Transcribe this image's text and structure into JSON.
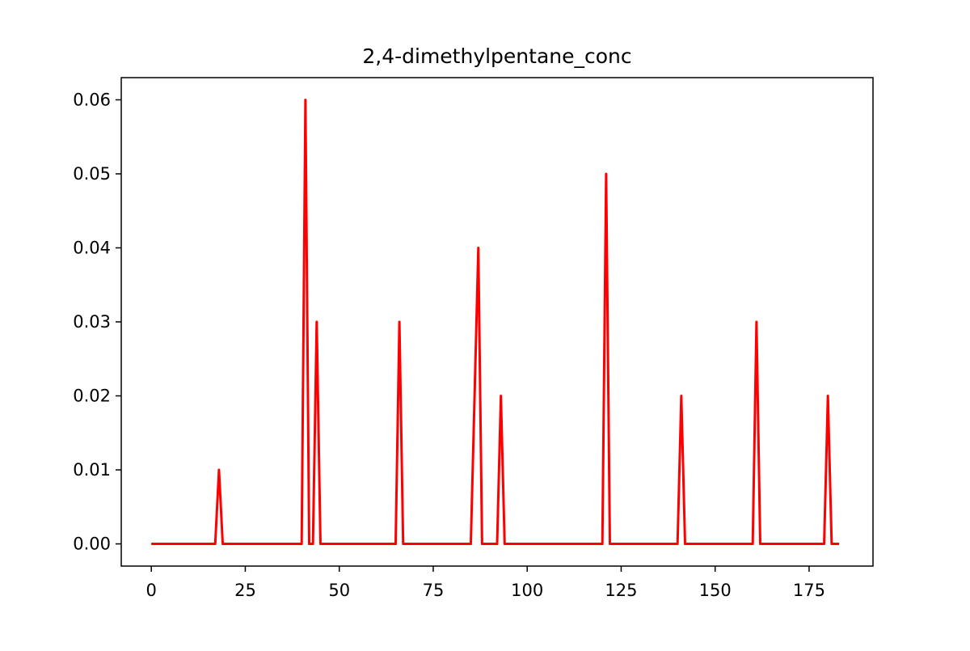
{
  "chart_data": {
    "type": "line",
    "title": "2,4-dimethylpentane_conc",
    "xlabel": "",
    "ylabel": "",
    "xlim": [
      -8,
      192
    ],
    "ylim": [
      -0.003,
      0.063
    ],
    "x_ticks": [
      0,
      25,
      50,
      75,
      100,
      125,
      150,
      175
    ],
    "x_tick_labels": [
      "0",
      "25",
      "50",
      "75",
      "100",
      "125",
      "150",
      "175"
    ],
    "y_ticks": [
      0.0,
      0.01,
      0.02,
      0.03,
      0.04,
      0.05,
      0.06
    ],
    "y_tick_labels": [
      "0.00",
      "0.01",
      "0.02",
      "0.03",
      "0.04",
      "0.05",
      "0.06"
    ],
    "grid": false,
    "series": [
      {
        "color": "#ff0000",
        "x": [
          0,
          17,
          18,
          19,
          40,
          41,
          42,
          43,
          44,
          45,
          65,
          66,
          67,
          85,
          86,
          87,
          88,
          92,
          93,
          94,
          120,
          121,
          122,
          140,
          141,
          142,
          160,
          161,
          162,
          179,
          180,
          181,
          183
        ],
        "y": [
          0,
          0,
          0.01,
          0,
          0,
          0.06,
          0,
          0,
          0.03,
          0,
          0,
          0.03,
          0,
          0,
          0.02,
          0.04,
          0,
          0,
          0.02,
          0,
          0,
          0.05,
          0,
          0,
          0.02,
          0,
          0,
          0.03,
          0,
          0,
          0.02,
          0,
          0
        ]
      }
    ]
  }
}
